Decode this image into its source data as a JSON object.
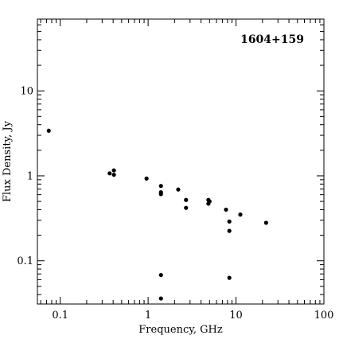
{
  "chart_data": {
    "type": "scatter",
    "title": "",
    "annotation": "1604+159",
    "xlabel": "Frequency, GHz",
    "ylabel": "Flux Density, Jy",
    "xscale": "log",
    "yscale": "log",
    "xlim": [
      0.055,
      100
    ],
    "ylim": [
      0.031,
      70
    ],
    "xticks": [
      {
        "value": 0.1,
        "label": "0.1"
      },
      {
        "value": 1,
        "label": "1"
      },
      {
        "value": 10,
        "label": "10"
      },
      {
        "value": 100,
        "label": "100"
      }
    ],
    "yticks": [
      {
        "value": 0.1,
        "label": "0.1"
      },
      {
        "value": 1,
        "label": "1"
      },
      {
        "value": 10,
        "label": "10"
      }
    ],
    "grid": false,
    "legend": "none",
    "marker_color": "#000000",
    "points": [
      {
        "x": 0.074,
        "y": 3.4
      },
      {
        "x": 0.365,
        "y": 1.07
      },
      {
        "x": 0.408,
        "y": 1.16
      },
      {
        "x": 0.408,
        "y": 1.03
      },
      {
        "x": 0.96,
        "y": 0.93
      },
      {
        "x": 1.4,
        "y": 0.76
      },
      {
        "x": 1.4,
        "y": 0.64
      },
      {
        "x": 1.4,
        "y": 0.61
      },
      {
        "x": 1.4,
        "y": 0.068
      },
      {
        "x": 1.4,
        "y": 0.036
      },
      {
        "x": 2.2,
        "y": 0.69
      },
      {
        "x": 2.7,
        "y": 0.52
      },
      {
        "x": 2.7,
        "y": 0.42
      },
      {
        "x": 4.85,
        "y": 0.52
      },
      {
        "x": 5.0,
        "y": 0.5
      },
      {
        "x": 4.85,
        "y": 0.47
      },
      {
        "x": 7.7,
        "y": 0.4
      },
      {
        "x": 8.4,
        "y": 0.29
      },
      {
        "x": 8.4,
        "y": 0.225
      },
      {
        "x": 8.4,
        "y": 0.063
      },
      {
        "x": 11.2,
        "y": 0.35
      },
      {
        "x": 22,
        "y": 0.28
      }
    ]
  }
}
